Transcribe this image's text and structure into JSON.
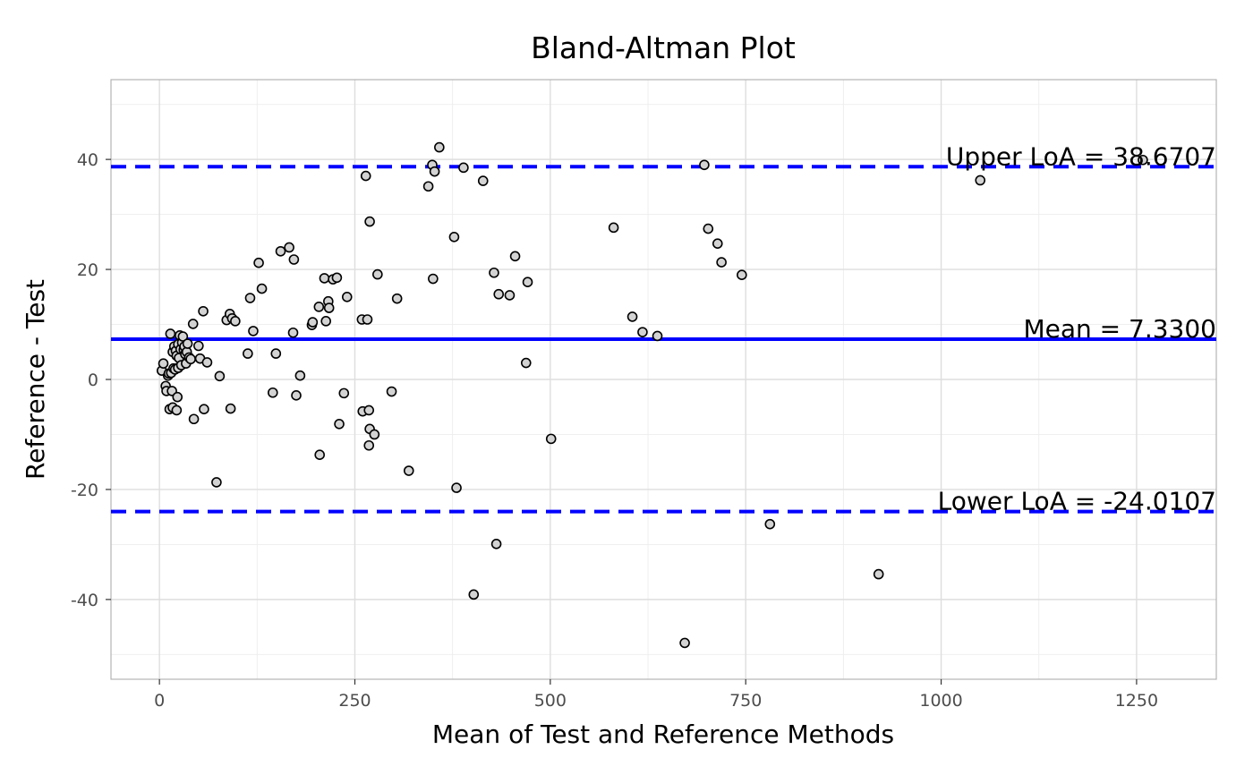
{
  "chart_data": {
    "type": "scatter",
    "title": "Bland-Altman Plot",
    "xlabel": "Mean of Test and Reference Methods",
    "ylabel": "Reference - Test",
    "xlim": [
      -62,
      1352
    ],
    "ylim": [
      -54.5,
      54.5
    ],
    "x_ticks": [
      0,
      250,
      500,
      750,
      1000,
      1250
    ],
    "y_ticks": [
      -40,
      -20,
      0,
      20,
      40
    ],
    "grid": true,
    "point_fill": "#d3d3d3",
    "point_stroke": "#000000",
    "line_color": "#0000ff",
    "reference_lines": [
      {
        "name": "upper",
        "y": 38.6707,
        "style": "dashed",
        "label": "Upper LoA = 38.6707"
      },
      {
        "name": "mean",
        "y": 7.33,
        "style": "solid",
        "label": "Mean = 7.3300"
      },
      {
        "name": "lower",
        "y": -24.0107,
        "style": "dashed",
        "label": "Lower LoA = -24.0107"
      }
    ],
    "points": [
      [
        3,
        1.6
      ],
      [
        5,
        2.9
      ],
      [
        8,
        -1.2
      ],
      [
        9,
        -2.1
      ],
      [
        11,
        0.7
      ],
      [
        12,
        1.1
      ],
      [
        13,
        -5.4
      ],
      [
        14,
        8.3
      ],
      [
        15,
        1.2
      ],
      [
        16,
        -2.1
      ],
      [
        17,
        -5.1
      ],
      [
        17,
        5.0
      ],
      [
        18,
        2.0
      ],
      [
        19,
        6.0
      ],
      [
        20,
        1.8
      ],
      [
        21,
        5.2
      ],
      [
        22,
        4.3
      ],
      [
        22,
        -5.6
      ],
      [
        23,
        -3.2
      ],
      [
        24,
        6.4
      ],
      [
        24,
        2.1
      ],
      [
        25,
        3.9
      ],
      [
        26,
        8.0
      ],
      [
        27,
        5.5
      ],
      [
        28,
        2.6
      ],
      [
        29,
        6.7
      ],
      [
        30,
        7.8
      ],
      [
        31,
        5.4
      ],
      [
        32,
        6.0
      ],
      [
        33,
        4.6
      ],
      [
        34,
        2.9
      ],
      [
        35,
        5.0
      ],
      [
        36,
        6.5
      ],
      [
        38,
        4.0
      ],
      [
        40,
        3.7
      ],
      [
        43,
        10.1
      ],
      [
        44,
        -7.2
      ],
      [
        50,
        6.1
      ],
      [
        52,
        3.8
      ],
      [
        56,
        12.4
      ],
      [
        57,
        -5.4
      ],
      [
        61,
        3.1
      ],
      [
        73,
        -18.7
      ],
      [
        77,
        0.6
      ],
      [
        86,
        10.8
      ],
      [
        90,
        11.9
      ],
      [
        91,
        -5.3
      ],
      [
        93,
        11.1
      ],
      [
        97,
        10.6
      ],
      [
        113,
        4.7
      ],
      [
        116,
        14.8
      ],
      [
        120,
        8.8
      ],
      [
        127,
        21.2
      ],
      [
        131,
        16.5
      ],
      [
        145,
        -2.4
      ],
      [
        149,
        4.7
      ],
      [
        155,
        23.3
      ],
      [
        166,
        24.0
      ],
      [
        171,
        8.5
      ],
      [
        172,
        21.8
      ],
      [
        175,
        -2.9
      ],
      [
        180,
        0.7
      ],
      [
        195,
        9.9
      ],
      [
        196,
        10.4
      ],
      [
        204,
        13.2
      ],
      [
        205,
        -13.7
      ],
      [
        211,
        18.4
      ],
      [
        213,
        10.6
      ],
      [
        216,
        14.2
      ],
      [
        217,
        13.0
      ],
      [
        222,
        18.2
      ],
      [
        227,
        18.5
      ],
      [
        230,
        -8.1
      ],
      [
        236,
        -2.5
      ],
      [
        240,
        15.0
      ],
      [
        259,
        10.9
      ],
      [
        260,
        -5.8
      ],
      [
        264,
        37.0
      ],
      [
        266,
        10.9
      ],
      [
        268,
        -5.6
      ],
      [
        268,
        -12.0
      ],
      [
        269,
        28.7
      ],
      [
        269,
        -9.0
      ],
      [
        275,
        -10.0
      ],
      [
        279,
        19.1
      ],
      [
        297,
        -2.2
      ],
      [
        304,
        14.7
      ],
      [
        319,
        -16.6
      ],
      [
        344,
        35.1
      ],
      [
        349,
        39.0
      ],
      [
        350,
        18.3
      ],
      [
        352,
        37.8
      ],
      [
        358,
        42.2
      ],
      [
        377,
        25.9
      ],
      [
        380,
        -19.7
      ],
      [
        389,
        38.5
      ],
      [
        402,
        -39.1
      ],
      [
        414,
        36.1
      ],
      [
        428,
        19.4
      ],
      [
        431,
        -29.9
      ],
      [
        434,
        15.5
      ],
      [
        448,
        15.3
      ],
      [
        455,
        22.4
      ],
      [
        469,
        3.0
      ],
      [
        471,
        17.7
      ],
      [
        501,
        -10.8
      ],
      [
        581,
        27.6
      ],
      [
        605,
        11.4
      ],
      [
        618,
        8.6
      ],
      [
        637,
        7.9
      ],
      [
        672,
        -47.9
      ],
      [
        697,
        39.0
      ],
      [
        702,
        27.4
      ],
      [
        714,
        24.7
      ],
      [
        719,
        21.3
      ],
      [
        745,
        19.0
      ],
      [
        781,
        -26.3
      ],
      [
        920,
        -35.4
      ],
      [
        1050,
        36.2
      ],
      [
        1258,
        39.9
      ]
    ]
  }
}
